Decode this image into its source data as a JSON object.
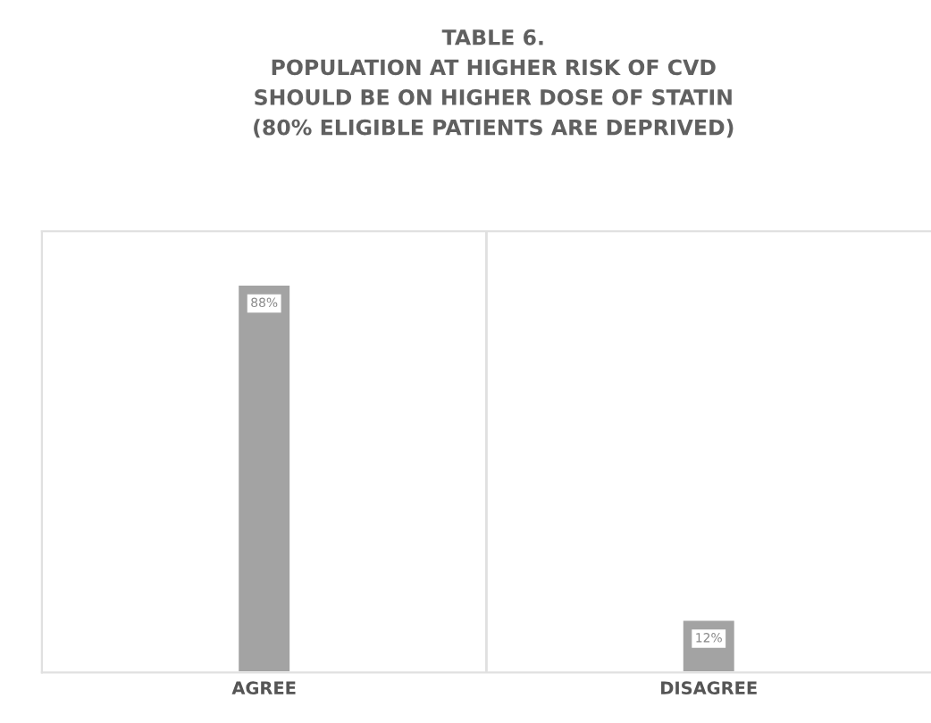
{
  "chart_data": {
    "type": "bar",
    "title": "TABLE 6.\nPOPULATION AT HIGHER RISK OF CVD\nSHOULD BE ON HIGHER DOSE OF STATIN\n(80% ELIGIBLE PATIENTS ARE DEPRIVED)",
    "categories": [
      "AGREE",
      "DISAGREE"
    ],
    "values": [
      88,
      12
    ],
    "value_labels": [
      "88%",
      "12%"
    ],
    "color": "#a3a3a3",
    "ylim": [
      0,
      100
    ],
    "tick_labels": "x",
    "grid": false,
    "legend": false
  }
}
